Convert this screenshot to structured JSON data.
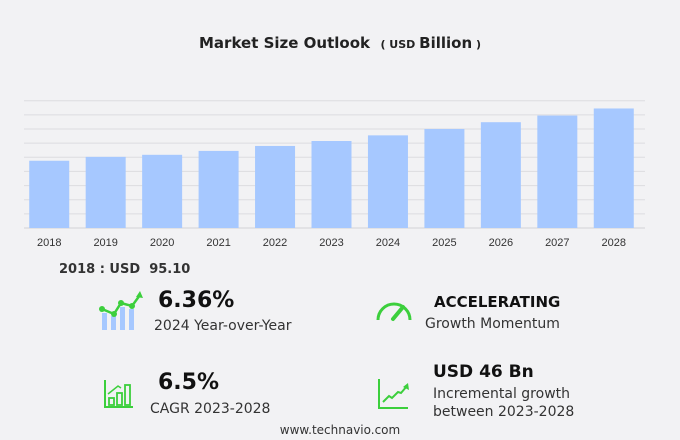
{
  "title": "Market Size Outlook",
  "unit_prefix": "USD",
  "unit": "Billion",
  "highlight": "2018 : USD  95.10",
  "stats": {
    "yoy": {
      "value": "6.36%",
      "label": "2024 Year-over-Year",
      "icon": "bar-line-chart-icon"
    },
    "momentum": {
      "value": "ACCELERATING",
      "label": "Growth Momentum",
      "icon": "speedometer-icon"
    },
    "cagr": {
      "value": "6.5%",
      "label": "CAGR 2023-2028",
      "icon": "bar-growth-icon"
    },
    "incremental": {
      "value": "USD 46 Bn",
      "label1": "Incremental growth",
      "label2": "between 2023-2028",
      "icon": "line-growth-icon"
    }
  },
  "footer": "www.technavio.com",
  "colors": {
    "bar": "#a6c8ff",
    "icon_green": "#3ccf3c",
    "icon_blue": "#a6c8ff",
    "grid": "#dcdce0"
  },
  "chart_data": {
    "type": "bar",
    "categories": [
      "2018",
      "2019",
      "2020",
      "2021",
      "2022",
      "2023",
      "2024",
      "2025",
      "2026",
      "2027",
      "2028"
    ],
    "values": [
      95.1,
      100.6,
      103.5,
      109,
      116,
      123,
      131,
      140,
      149.6,
      159,
      169
    ],
    "ylim": [
      0,
      180
    ],
    "grid": true,
    "title": "Market Size Outlook",
    "ylabel": "",
    "xlabel": ""
  }
}
